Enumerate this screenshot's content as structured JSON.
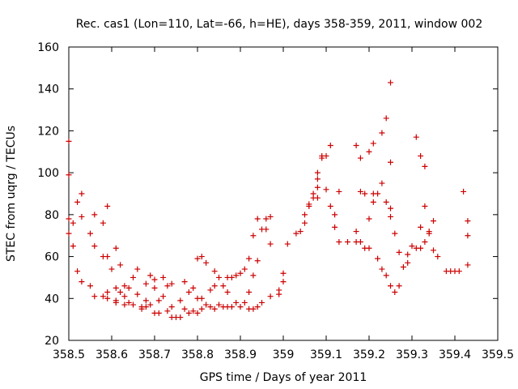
{
  "chart_data": {
    "type": "scatter",
    "title": "Rec. cas1 (Lon=110, Lat=-66, h=HE), days 358-359, 2011, window 002",
    "xlabel": "GPS time / Days of year 2011",
    "ylabel": "STEC from uqrg / TECUs",
    "xlim": [
      358.5,
      359.5
    ],
    "ylim": [
      20,
      160
    ],
    "xticks": [
      358.5,
      358.6,
      358.7,
      358.8,
      358.9,
      359,
      359.1,
      359.2,
      359.3,
      359.4,
      359.5
    ],
    "xtick_labels": [
      "358.5",
      "358.6",
      "358.7",
      "358.8",
      "358.9",
      "359",
      "359.1",
      "359.2",
      "359.3",
      "359.4",
      "359.5"
    ],
    "yticks": [
      20,
      40,
      60,
      80,
      100,
      120,
      140,
      160
    ],
    "ytick_labels": [
      "20",
      "40",
      "60",
      "80",
      "100",
      "120",
      "140",
      "160"
    ],
    "grid": false,
    "marker": "+",
    "color": "#cc0000",
    "series": [
      {
        "name": "STEC",
        "points": [
          [
            358.5,
            115
          ],
          [
            358.5,
            99
          ],
          [
            358.5,
            78
          ],
          [
            358.5,
            71
          ],
          [
            358.51,
            76
          ],
          [
            358.51,
            65
          ],
          [
            358.52,
            86
          ],
          [
            358.52,
            53
          ],
          [
            358.53,
            79
          ],
          [
            358.53,
            90
          ],
          [
            358.53,
            48
          ],
          [
            358.55,
            71
          ],
          [
            358.55,
            46
          ],
          [
            358.56,
            80
          ],
          [
            358.56,
            65
          ],
          [
            358.56,
            41
          ],
          [
            358.58,
            76
          ],
          [
            358.58,
            60
          ],
          [
            358.58,
            41
          ],
          [
            358.59,
            60
          ],
          [
            358.59,
            84
          ],
          [
            358.59,
            43
          ],
          [
            358.59,
            40
          ],
          [
            358.6,
            54
          ],
          [
            358.61,
            64
          ],
          [
            358.61,
            45
          ],
          [
            358.61,
            39
          ],
          [
            358.61,
            38
          ],
          [
            358.62,
            56
          ],
          [
            358.62,
            43
          ],
          [
            358.63,
            46
          ],
          [
            358.63,
            41
          ],
          [
            358.63,
            37
          ],
          [
            358.64,
            45
          ],
          [
            358.64,
            38
          ],
          [
            358.65,
            50
          ],
          [
            358.65,
            37
          ],
          [
            358.66,
            54
          ],
          [
            358.66,
            42
          ],
          [
            358.67,
            36
          ],
          [
            358.67,
            35
          ],
          [
            358.68,
            47
          ],
          [
            358.68,
            39
          ],
          [
            358.68,
            36
          ],
          [
            358.69,
            51
          ],
          [
            358.69,
            37
          ],
          [
            358.7,
            49
          ],
          [
            358.7,
            45
          ],
          [
            358.7,
            33
          ],
          [
            358.71,
            39
          ],
          [
            358.71,
            33
          ],
          [
            358.72,
            50
          ],
          [
            358.72,
            41
          ],
          [
            358.73,
            46
          ],
          [
            358.73,
            34
          ],
          [
            358.74,
            47
          ],
          [
            358.74,
            36
          ],
          [
            358.74,
            31
          ],
          [
            358.75,
            31
          ],
          [
            358.76,
            39
          ],
          [
            358.76,
            31
          ],
          [
            358.77,
            48
          ],
          [
            358.77,
            35
          ],
          [
            358.78,
            43
          ],
          [
            358.78,
            33
          ],
          [
            358.79,
            45
          ],
          [
            358.79,
            34
          ],
          [
            358.8,
            59
          ],
          [
            358.8,
            40
          ],
          [
            358.8,
            33
          ],
          [
            358.81,
            60
          ],
          [
            358.81,
            40
          ],
          [
            358.81,
            35
          ],
          [
            358.82,
            57
          ],
          [
            358.82,
            37
          ],
          [
            358.83,
            44
          ],
          [
            358.83,
            36
          ],
          [
            358.84,
            53
          ],
          [
            358.84,
            46
          ],
          [
            358.84,
            35
          ],
          [
            358.85,
            50
          ],
          [
            358.85,
            37
          ],
          [
            358.86,
            46
          ],
          [
            358.86,
            36
          ],
          [
            358.87,
            50
          ],
          [
            358.87,
            43
          ],
          [
            358.87,
            36
          ],
          [
            358.88,
            50
          ],
          [
            358.88,
            36
          ],
          [
            358.89,
            51
          ],
          [
            358.89,
            38
          ],
          [
            358.9,
            52
          ],
          [
            358.9,
            36
          ],
          [
            358.91,
            54
          ],
          [
            358.91,
            38
          ],
          [
            358.92,
            59
          ],
          [
            358.92,
            43
          ],
          [
            358.92,
            35
          ],
          [
            358.93,
            70
          ],
          [
            358.93,
            51
          ],
          [
            358.93,
            35
          ],
          [
            358.94,
            78
          ],
          [
            358.94,
            58
          ],
          [
            358.94,
            36
          ],
          [
            358.95,
            73
          ],
          [
            358.95,
            38
          ],
          [
            358.96,
            73
          ],
          [
            358.96,
            78
          ],
          [
            358.97,
            79
          ],
          [
            358.97,
            66
          ],
          [
            358.97,
            41
          ],
          [
            358.99,
            42
          ],
          [
            358.99,
            44
          ],
          [
            359,
            52
          ],
          [
            359,
            48
          ],
          [
            359.01,
            66
          ],
          [
            359.03,
            71
          ],
          [
            359.04,
            72
          ],
          [
            359.05,
            76
          ],
          [
            359.05,
            80
          ],
          [
            359.06,
            84
          ],
          [
            359.06,
            85
          ],
          [
            359.07,
            88
          ],
          [
            359.07,
            90
          ],
          [
            359.08,
            93
          ],
          [
            359.08,
            88
          ],
          [
            359.08,
            100
          ],
          [
            359.08,
            97
          ],
          [
            359.09,
            108
          ],
          [
            359.09,
            107
          ],
          [
            359.1,
            108
          ],
          [
            359.1,
            92
          ],
          [
            359.11,
            84
          ],
          [
            359.11,
            113
          ],
          [
            359.12,
            80
          ],
          [
            359.12,
            74
          ],
          [
            359.13,
            91
          ],
          [
            359.13,
            67
          ],
          [
            359.15,
            67
          ],
          [
            359.17,
            113
          ],
          [
            359.17,
            72
          ],
          [
            359.17,
            67
          ],
          [
            359.18,
            67
          ],
          [
            359.18,
            91
          ],
          [
            359.18,
            107
          ],
          [
            359.19,
            64
          ],
          [
            359.19,
            90
          ],
          [
            359.2,
            110
          ],
          [
            359.2,
            78
          ],
          [
            359.2,
            64
          ],
          [
            359.21,
            90
          ],
          [
            359.21,
            86
          ],
          [
            359.21,
            114
          ],
          [
            359.22,
            59
          ],
          [
            359.22,
            90
          ],
          [
            359.23,
            95
          ],
          [
            359.23,
            119
          ],
          [
            359.23,
            54
          ],
          [
            359.24,
            126
          ],
          [
            359.24,
            86
          ],
          [
            359.24,
            51
          ],
          [
            359.25,
            143
          ],
          [
            359.25,
            105
          ],
          [
            359.25,
            83
          ],
          [
            359.25,
            79
          ],
          [
            359.25,
            46
          ],
          [
            359.26,
            71
          ],
          [
            359.26,
            43
          ],
          [
            359.27,
            46
          ],
          [
            359.27,
            62
          ],
          [
            359.28,
            55
          ],
          [
            359.29,
            61
          ],
          [
            359.29,
            57
          ],
          [
            359.3,
            65
          ],
          [
            359.31,
            64
          ],
          [
            359.31,
            117
          ],
          [
            359.32,
            64
          ],
          [
            359.32,
            74
          ],
          [
            359.32,
            108
          ],
          [
            359.33,
            103
          ],
          [
            359.33,
            84
          ],
          [
            359.33,
            67
          ],
          [
            359.34,
            71
          ],
          [
            359.34,
            72
          ],
          [
            359.35,
            77
          ],
          [
            359.35,
            63
          ],
          [
            359.36,
            60
          ],
          [
            359.38,
            53
          ],
          [
            359.39,
            53
          ],
          [
            359.4,
            53
          ],
          [
            359.41,
            53
          ],
          [
            359.42,
            91
          ],
          [
            359.43,
            77
          ],
          [
            359.43,
            70
          ],
          [
            359.43,
            56
          ]
        ]
      }
    ]
  }
}
